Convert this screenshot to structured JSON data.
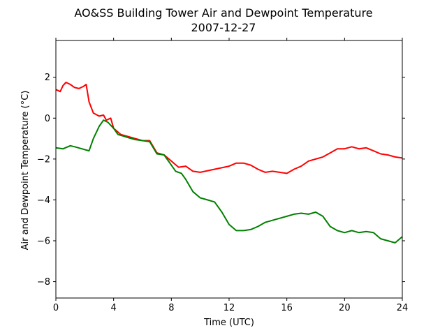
{
  "chart_data": {
    "type": "line",
    "title": "AO&SS Building Tower Air and Dewpoint Temperature",
    "subtitle": "2007-12-27",
    "xlabel": "Time (UTC)",
    "ylabel": "Air and Dewpoint Temperature (°C)",
    "xlim": [
      0,
      24
    ],
    "ylim": [
      -8.8,
      3.8
    ],
    "xticks": [
      0,
      4,
      8,
      12,
      16,
      20,
      24
    ],
    "yticks": [
      -8,
      -6,
      -4,
      -2,
      0,
      2
    ],
    "grid": false,
    "series": [
      {
        "color": "#ff0000",
        "x": [
          0,
          0.3,
          0.5,
          0.7,
          1.0,
          1.3,
          1.6,
          1.9,
          2.1,
          2.3,
          2.6,
          3.0,
          3.3,
          3.5,
          3.8,
          4.0,
          4.5,
          5.0,
          5.5,
          6.0,
          6.5,
          7.0,
          7.5,
          8.0,
          8.5,
          9.0,
          9.5,
          10.0,
          11.0,
          12.0,
          12.5,
          13.0,
          13.5,
          14.0,
          14.5,
          15.0,
          15.5,
          16.0,
          16.5,
          17.0,
          17.5,
          18.0,
          18.5,
          19.0,
          19.5,
          20.0,
          20.5,
          21.0,
          21.5,
          22.0,
          22.5,
          23.0,
          23.5,
          24.0
        ],
        "values": [
          1.4,
          1.3,
          1.6,
          1.75,
          1.65,
          1.5,
          1.45,
          1.55,
          1.65,
          0.8,
          0.25,
          0.1,
          0.15,
          -0.1,
          0.0,
          -0.5,
          -0.8,
          -0.9,
          -1.0,
          -1.1,
          -1.1,
          -1.7,
          -1.8,
          -2.1,
          -2.4,
          -2.35,
          -2.6,
          -2.65,
          -2.5,
          -2.35,
          -2.2,
          -2.2,
          -2.3,
          -2.5,
          -2.65,
          -2.6,
          -2.65,
          -2.7,
          -2.5,
          -2.35,
          -2.1,
          -2.0,
          -1.9,
          -1.7,
          -1.5,
          -1.5,
          -1.4,
          -1.5,
          -1.45,
          -1.6,
          -1.75,
          -1.8,
          -1.9,
          -1.95
        ]
      },
      {
        "color": "#008000",
        "x": [
          0,
          0.5,
          1.0,
          1.3,
          1.8,
          2.3,
          2.6,
          3.0,
          3.3,
          3.6,
          4.0,
          4.3,
          5.0,
          5.5,
          6.0,
          6.5,
          7.0,
          7.5,
          8.0,
          8.3,
          8.7,
          9.0,
          9.5,
          10.0,
          10.5,
          11.0,
          11.5,
          12.0,
          12.5,
          13.0,
          13.5,
          14.0,
          14.5,
          15.0,
          15.5,
          16.0,
          16.5,
          17.0,
          17.5,
          18.0,
          18.5,
          19.0,
          19.5,
          20.0,
          20.5,
          21.0,
          21.5,
          22.0,
          22.5,
          23.0,
          23.5,
          24.0
        ],
        "values": [
          -1.45,
          -1.5,
          -1.35,
          -1.4,
          -1.5,
          -1.6,
          -1.0,
          -0.4,
          -0.1,
          -0.2,
          -0.5,
          -0.8,
          -0.95,
          -1.05,
          -1.1,
          -1.15,
          -1.75,
          -1.8,
          -2.3,
          -2.6,
          -2.7,
          -3.0,
          -3.6,
          -3.9,
          -4.0,
          -4.1,
          -4.6,
          -5.2,
          -5.5,
          -5.5,
          -5.45,
          -5.3,
          -5.1,
          -5.0,
          -4.9,
          -4.8,
          -4.7,
          -4.65,
          -4.7,
          -4.6,
          -4.8,
          -5.3,
          -5.5,
          -5.6,
          -5.5,
          -5.6,
          -5.55,
          -5.6,
          -5.9,
          -6.0,
          -6.1,
          -5.8
        ]
      }
    ]
  }
}
